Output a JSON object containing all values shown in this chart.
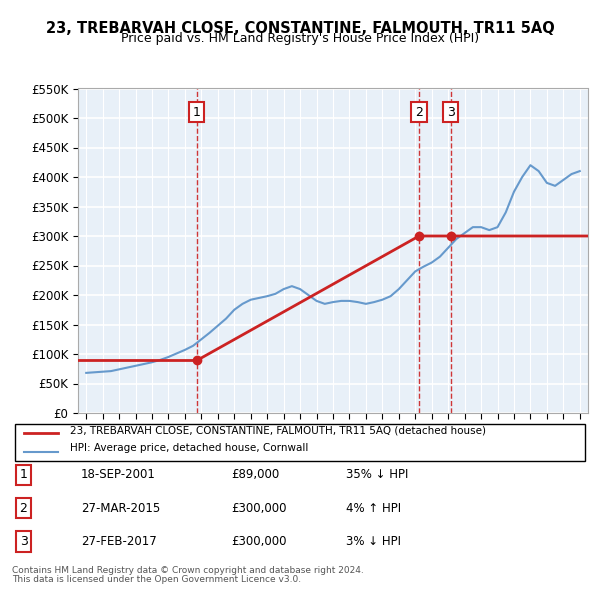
{
  "title": "23, TREBARVAH CLOSE, CONSTANTINE, FALMOUTH, TR11 5AQ",
  "subtitle": "Price paid vs. HM Land Registry's House Price Index (HPI)",
  "legend_line1": "23, TREBARVAH CLOSE, CONSTANTINE, FALMOUTH, TR11 5AQ (detached house)",
  "legend_line2": "HPI: Average price, detached house, Cornwall",
  "footer1": "Contains HM Land Registry data © Crown copyright and database right 2024.",
  "footer2": "This data is licensed under the Open Government Licence v3.0.",
  "transactions": [
    {
      "num": 1,
      "date": "18-SEP-2001",
      "price": 89000,
      "hpi_rel": "35% ↓ HPI",
      "year": 2001.72
    },
    {
      "num": 2,
      "date": "27-MAR-2015",
      "price": 300000,
      "hpi_rel": "4% ↑ HPI",
      "year": 2015.23
    },
    {
      "num": 3,
      "date": "27-FEB-2017",
      "price": 300000,
      "hpi_rel": "3% ↓ HPI",
      "year": 2017.16
    }
  ],
  "ylim": [
    0,
    550000
  ],
  "yticks": [
    0,
    50000,
    100000,
    150000,
    200000,
    250000,
    300000,
    350000,
    400000,
    450000,
    500000,
    550000
  ],
  "xlim_start": 1994.5,
  "xlim_end": 2025.5,
  "hpi_color": "#6699cc",
  "price_color": "#cc2222",
  "bg_color": "#e8f0f8",
  "grid_color": "#ffffff",
  "hpi_years": [
    1995,
    1995.5,
    1996,
    1996.5,
    1997,
    1997.5,
    1998,
    1998.5,
    1999,
    1999.5,
    2000,
    2000.5,
    2001,
    2001.5,
    2002,
    2002.5,
    2003,
    2003.5,
    2004,
    2004.5,
    2005,
    2005.5,
    2006,
    2006.5,
    2007,
    2007.5,
    2008,
    2008.5,
    2009,
    2009.5,
    2010,
    2010.5,
    2011,
    2011.5,
    2012,
    2012.5,
    2013,
    2013.5,
    2014,
    2014.5,
    2015,
    2015.5,
    2016,
    2016.5,
    2017,
    2017.5,
    2018,
    2018.5,
    2019,
    2019.5,
    2020,
    2020.5,
    2021,
    2021.5,
    2022,
    2022.5,
    2023,
    2023.5,
    2024,
    2024.5,
    2025
  ],
  "hpi_values": [
    68000,
    69000,
    70000,
    71000,
    74000,
    77000,
    80000,
    83000,
    86000,
    90000,
    95000,
    101000,
    107000,
    114000,
    125000,
    136000,
    148000,
    160000,
    175000,
    185000,
    192000,
    195000,
    198000,
    202000,
    210000,
    215000,
    210000,
    200000,
    190000,
    185000,
    188000,
    190000,
    190000,
    188000,
    185000,
    188000,
    192000,
    198000,
    210000,
    225000,
    240000,
    248000,
    255000,
    265000,
    280000,
    295000,
    305000,
    315000,
    315000,
    310000,
    315000,
    340000,
    375000,
    400000,
    420000,
    410000,
    390000,
    385000,
    395000,
    405000,
    410000
  ],
  "price_years_flat": [
    1994.5,
    2001.72,
    2001.72,
    2015.23,
    2015.23,
    2017.16,
    2017.16,
    2025.5
  ],
  "price_values_flat": [
    89000,
    89000,
    89000,
    300000,
    300000,
    300000,
    300000,
    300000
  ]
}
